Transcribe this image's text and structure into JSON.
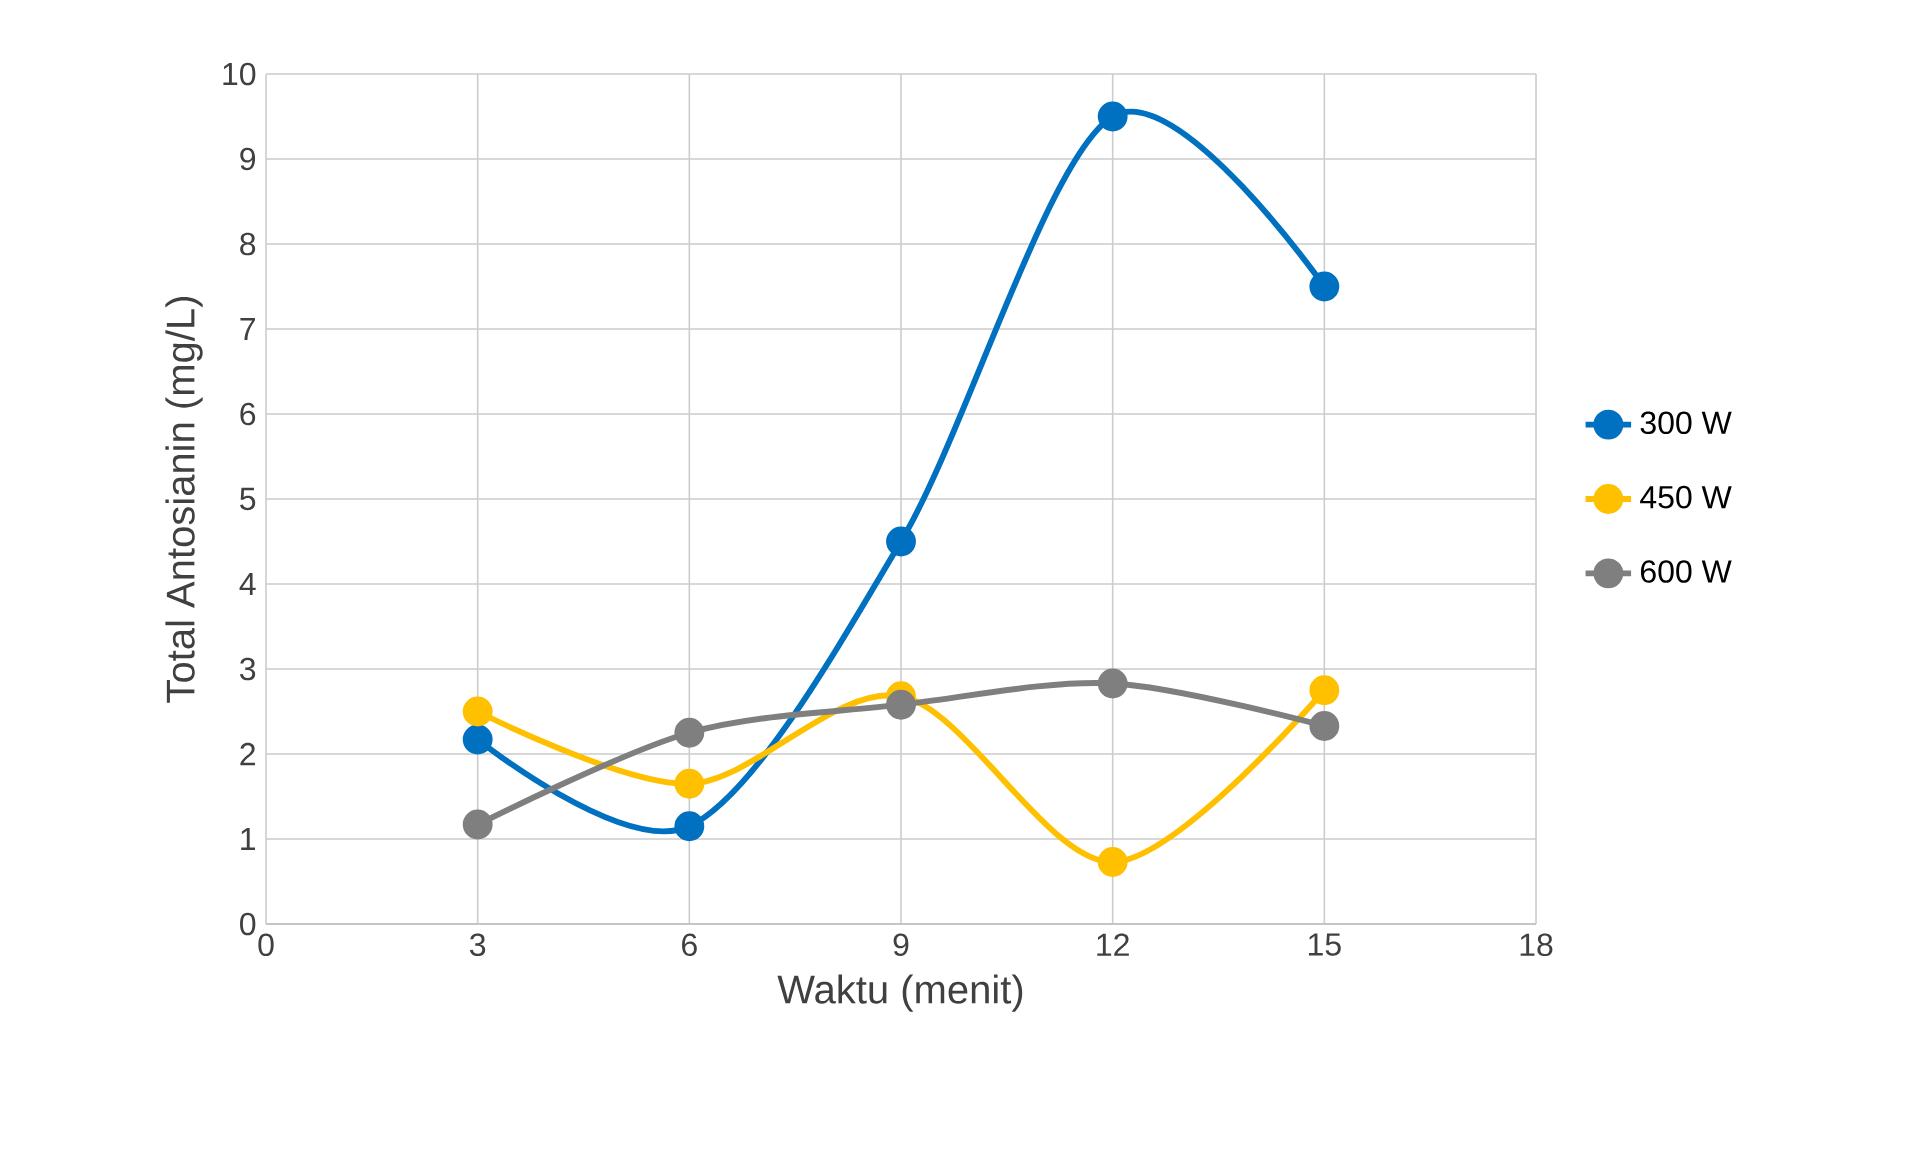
{
  "chart_data": {
    "type": "line",
    "xlabel": "Waktu (menit)",
    "ylabel": "Total Antosianin (mg/L)",
    "x": [
      3,
      6,
      9,
      12,
      15
    ],
    "series": [
      {
        "name": "300 W",
        "color": "#0070c0",
        "values": [
          2.17,
          1.15,
          4.5,
          9.5,
          7.5
        ]
      },
      {
        "name": "450 W",
        "color": "#ffc000",
        "values": [
          2.5,
          1.65,
          2.68,
          0.73,
          2.75
        ]
      },
      {
        "name": "600 W",
        "color": "#7f7f7f",
        "values": [
          1.17,
          2.25,
          2.58,
          2.83,
          2.33
        ]
      }
    ],
    "xlim": [
      0,
      18
    ],
    "xticks": [
      0,
      3,
      6,
      9,
      12,
      15,
      18
    ],
    "ylim": [
      0,
      10
    ],
    "yticks": [
      0,
      1,
      2,
      3,
      4,
      5,
      6,
      7,
      8,
      9,
      10
    ],
    "grid": true,
    "legend": "right",
    "marker": "circle",
    "line_style": "solid"
  }
}
